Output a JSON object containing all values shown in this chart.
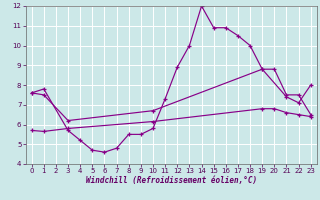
{
  "background_color": "#cce8e8",
  "grid_color": "#ffffff",
  "line_color": "#880088",
  "xlabel": "Windchill (Refroidissement éolien,°C)",
  "xmin": 0,
  "xmax": 23,
  "ymin": 4,
  "ymax": 12,
  "yticks": [
    4,
    5,
    6,
    7,
    8,
    9,
    10,
    11,
    12
  ],
  "s1_x": [
    0,
    1,
    3,
    4,
    5,
    6,
    7,
    8,
    9,
    10,
    11,
    12,
    13,
    14,
    15,
    16,
    17,
    18,
    19,
    21,
    22,
    23
  ],
  "s1_y": [
    7.6,
    7.8,
    5.7,
    5.2,
    4.7,
    4.6,
    4.8,
    5.5,
    5.5,
    5.8,
    7.3,
    8.9,
    10.0,
    12.0,
    10.9,
    10.9,
    10.5,
    10.0,
    8.8,
    7.4,
    7.1,
    8.0
  ],
  "s2_x": [
    0,
    1,
    3,
    10,
    19,
    20,
    21,
    22,
    23
  ],
  "s2_y": [
    7.6,
    7.5,
    6.2,
    6.7,
    8.8,
    8.8,
    7.5,
    7.5,
    6.5
  ],
  "s3_x": [
    0,
    1,
    3,
    10,
    19,
    20,
    21,
    22,
    23
  ],
  "s3_y": [
    5.7,
    5.65,
    5.8,
    6.15,
    6.8,
    6.8,
    6.6,
    6.5,
    6.4
  ]
}
